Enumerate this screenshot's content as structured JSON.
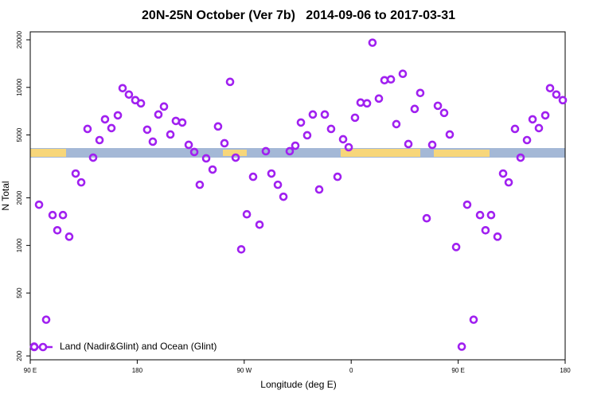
{
  "chart_data": {
    "type": "scatter",
    "title": "20N-25N October (Ver 7b)   2014-09-06 to 2017-03-31",
    "x_label": "Longitude (deg E)",
    "y_label": "N Total",
    "log_y": true,
    "legend": "bottom-left",
    "xlim": [
      90,
      540
    ],
    "xticks": [
      {
        "value": 90,
        "label": "90 E"
      },
      180,
      {
        "value": 270,
        "label": "90 W"
      },
      {
        "value": 360,
        "label": "0"
      },
      {
        "value": 450,
        "label": "90 E"
      },
      {
        "value": 540,
        "label": "180"
      }
    ],
    "ylim": [
      189,
      22460
    ],
    "yticks": [
      200,
      500,
      1000,
      2000,
      5000,
      10000,
      20000
    ],
    "series": [
      {
        "name": "Land (Nadir&Glint) and Ocean (Glint)",
        "color": "#a020f0",
        "x": [
          93.3,
          97.4,
          103.4,
          108.8,
          112.8,
          117.5,
          122.8,
          128.2,
          132.9,
          138.2,
          142.9,
          148.3,
          152.9,
          158.3,
          163.7,
          167.7,
          173.0,
          178.4,
          183.1,
          188.4,
          193.1,
          197.8,
          202.5,
          207.9,
          212.5,
          217.9,
          223.3,
          228.0,
          232.6,
          238.0,
          243.4,
          248.0,
          253.4,
          258.1,
          262.8,
          267.5,
          272.2,
          277.5,
          282.9,
          288.2,
          292.9,
          298.3,
          303.0,
          308.3,
          313.0,
          317.7,
          323.0,
          327.7,
          333.1,
          337.8,
          343.1,
          348.5,
          353.2,
          357.9,
          363.2,
          367.9,
          373.3,
          377.9,
          383.3,
          388.0,
          393.4,
          398.0,
          403.4,
          408.1,
          413.4,
          418.1,
          423.5,
          428.2,
          432.9,
          438.2,
          442.9,
          448.3,
          453.0,
          457.6,
          463.0,
          468.4,
          473.0,
          477.7,
          483.1,
          487.8,
          492.5,
          497.8,
          502.5,
          507.9,
          512.6,
          517.9,
          523.3,
          527.3,
          532.6,
          538.0
        ],
        "values": [
          229,
          1810,
          339,
          1556,
          1247,
          1556,
          1136,
          2850,
          2506,
          5460,
          3594,
          4640,
          6280,
          5525,
          6655,
          9885,
          9010,
          8300,
          7925,
          5400,
          4535,
          6735,
          7565,
          5035,
          6135,
          5995,
          4330,
          3900,
          2420,
          3555,
          3020,
          5660,
          4430,
          10840,
          3594,
          944,
          1574,
          2718,
          1353,
          3945,
          2850,
          2420,
          2033,
          3945,
          4277,
          5995,
          4977,
          6735,
          2258,
          6735,
          5460,
          2718,
          4697,
          4180,
          6428,
          8015,
          7925,
          19180,
          8495,
          11100,
          11240,
          5855,
          12190,
          4380,
          7305,
          9220,
          1485,
          4330,
          7650,
          6895,
          5035,
          977,
          229,
          1810,
          339,
          1556,
          1247,
          1556,
          1136,
          2850,
          2506,
          5460,
          3594,
          4640,
          6280,
          5525,
          6655,
          9885,
          9010,
          8300
        ]
      }
    ]
  }
}
